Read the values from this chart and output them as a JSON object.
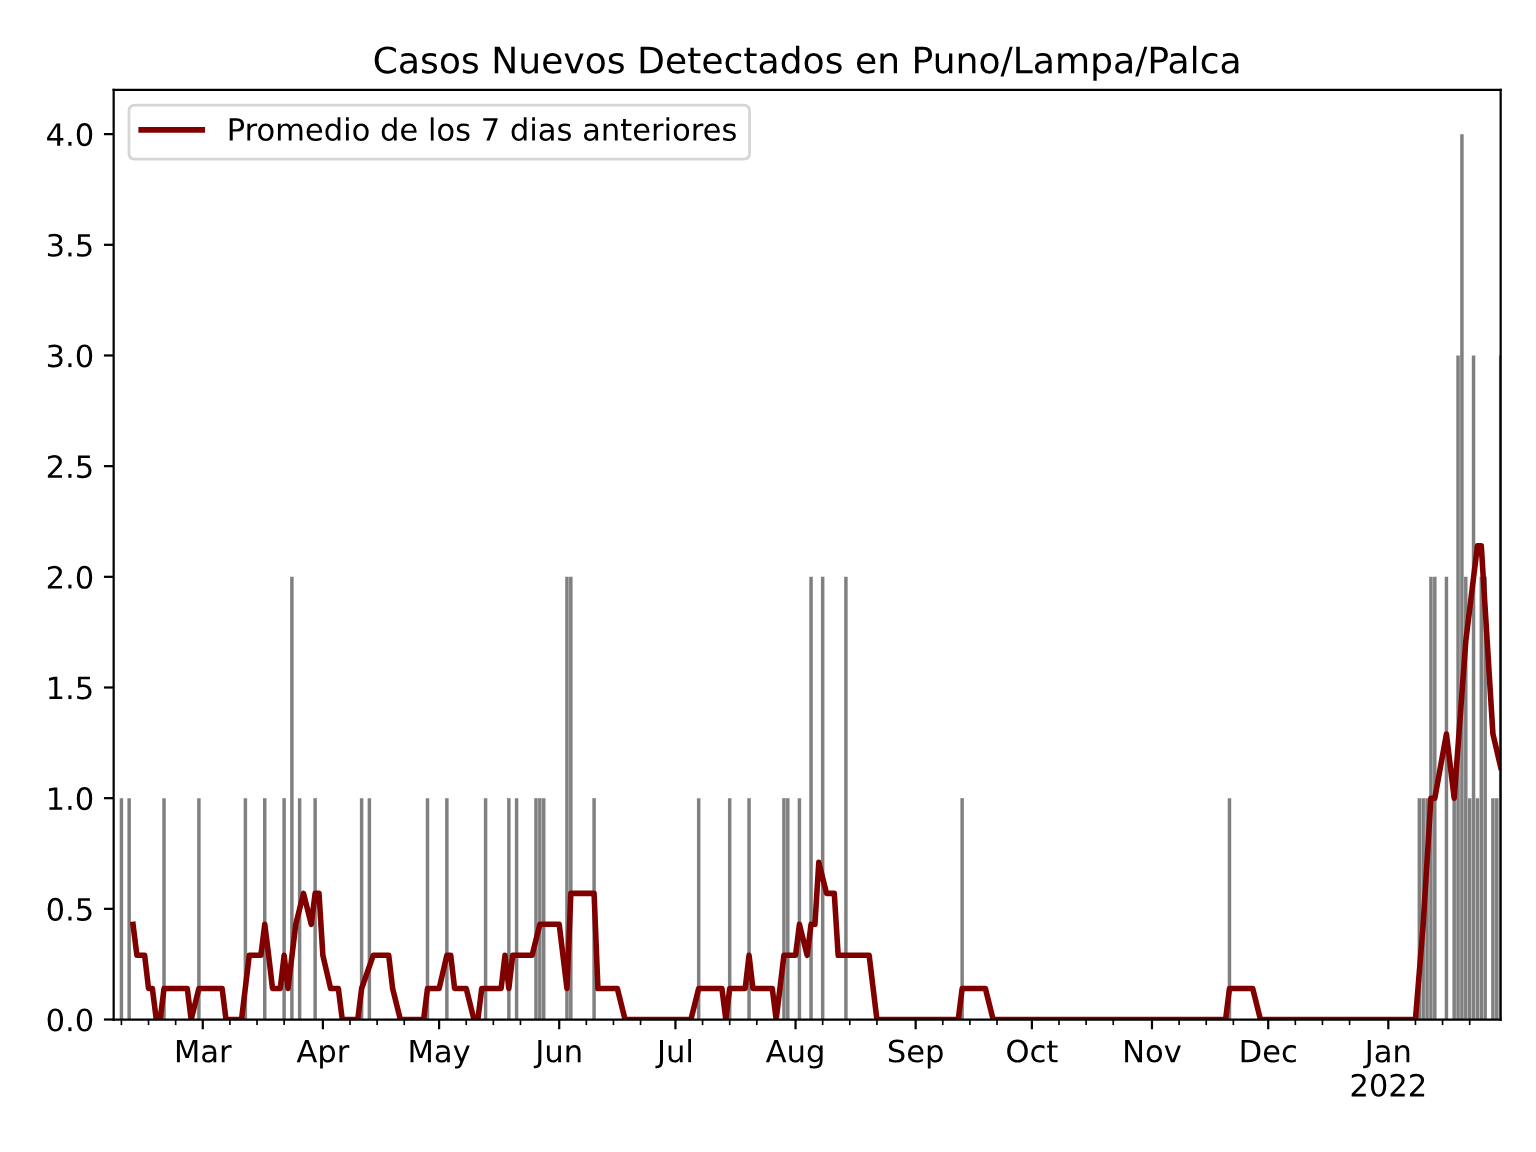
{
  "chart_data": {
    "type": "bar",
    "title": "Casos Nuevos Detectados en Puno/Lampa/Palca",
    "series": [
      {
        "color": "#808080",
        "x": [
          "2021-02-08",
          "2021-02-10",
          "2021-02-19",
          "2021-02-28",
          "2021-03-12",
          "2021-03-17",
          "2021-03-22",
          "2021-03-24",
          "2021-03-26",
          "2021-03-30",
          "2021-04-11",
          "2021-04-13",
          "2021-04-28",
          "2021-05-03",
          "2021-05-13",
          "2021-05-19",
          "2021-05-21",
          "2021-05-26",
          "2021-05-27",
          "2021-05-28",
          "2021-06-03",
          "2021-06-04",
          "2021-06-10",
          "2021-07-07",
          "2021-07-15",
          "2021-07-20",
          "2021-07-29",
          "2021-07-30",
          "2021-08-02",
          "2021-08-05",
          "2021-08-08",
          "2021-08-14",
          "2021-09-13",
          "2021-11-21",
          "2022-01-09",
          "2022-01-10",
          "2022-01-11",
          "2022-01-12",
          "2022-01-13",
          "2022-01-16",
          "2022-01-18",
          "2022-01-19",
          "2022-01-20",
          "2022-01-21",
          "2022-01-22",
          "2022-01-23",
          "2022-01-24",
          "2022-01-25",
          "2022-01-26",
          "2022-01-28",
          "2022-01-29",
          "2022-01-30"
        ],
        "values": [
          1,
          1,
          1,
          1,
          1,
          1,
          1,
          2,
          1,
          1,
          1,
          1,
          1,
          1,
          1,
          1,
          1,
          1,
          1,
          1,
          2,
          2,
          1,
          1,
          1,
          1,
          1,
          1,
          1,
          2,
          2,
          2,
          1,
          1,
          1,
          1,
          1,
          2,
          2,
          2,
          1,
          3,
          4,
          2,
          1,
          3,
          1,
          2,
          2,
          1,
          1,
          3
        ]
      },
      {
        "type": "line",
        "name": "Promedio de los 7 dias anteriores",
        "color": "#800000",
        "x": [
          "2021-02-11",
          "2021-02-12",
          "2021-02-14",
          "2021-02-15",
          "2021-02-16",
          "2021-02-17",
          "2021-02-18",
          "2021-02-19",
          "2021-02-25",
          "2021-02-26",
          "2021-02-28",
          "2021-03-06",
          "2021-03-07",
          "2021-03-11",
          "2021-03-13",
          "2021-03-16",
          "2021-03-17",
          "2021-03-18",
          "2021-03-19",
          "2021-03-21",
          "2021-03-22",
          "2021-03-23",
          "2021-03-25",
          "2021-03-27",
          "2021-03-29",
          "2021-03-30",
          "2021-03-31",
          "2021-04-01",
          "2021-04-03",
          "2021-04-05",
          "2021-04-06",
          "2021-04-10",
          "2021-04-11",
          "2021-04-14",
          "2021-04-18",
          "2021-04-19",
          "2021-04-21",
          "2021-04-27",
          "2021-04-28",
          "2021-05-01",
          "2021-05-03",
          "2021-05-04",
          "2021-05-05",
          "2021-05-08",
          "2021-05-10",
          "2021-05-11",
          "2021-05-12",
          "2021-05-17",
          "2021-05-18",
          "2021-05-19",
          "2021-05-20",
          "2021-05-25",
          "2021-05-27",
          "2021-06-01",
          "2021-06-03",
          "2021-06-04",
          "2021-06-10",
          "2021-06-11",
          "2021-06-16",
          "2021-06-18",
          "2021-07-05",
          "2021-07-07",
          "2021-07-13",
          "2021-07-14",
          "2021-07-15",
          "2021-07-19",
          "2021-07-20",
          "2021-07-21",
          "2021-07-26",
          "2021-07-27",
          "2021-07-29",
          "2021-08-01",
          "2021-08-02",
          "2021-08-04",
          "2021-08-05",
          "2021-08-06",
          "2021-08-07",
          "2021-08-09",
          "2021-08-11",
          "2021-08-12",
          "2021-08-20",
          "2021-08-22",
          "2021-09-12",
          "2021-09-13",
          "2021-09-19",
          "2021-09-21",
          "2021-11-20",
          "2021-11-21",
          "2021-11-27",
          "2021-11-29",
          "2022-01-08",
          "2022-01-10",
          "2022-01-12",
          "2022-01-13",
          "2022-01-16",
          "2022-01-18",
          "2022-01-21",
          "2022-01-24",
          "2022-01-25",
          "2022-01-28",
          "2022-01-30"
        ],
        "values": [
          0.43,
          0.29,
          0.29,
          0.14,
          0.14,
          0,
          0,
          0.14,
          0.14,
          0,
          0.14,
          0.14,
          0,
          0,
          0.29,
          0.29,
          0.43,
          0.29,
          0.14,
          0.14,
          0.29,
          0.14,
          0.43,
          0.57,
          0.43,
          0.57,
          0.57,
          0.29,
          0.14,
          0.14,
          0,
          0,
          0.14,
          0.29,
          0.29,
          0.14,
          0,
          0,
          0.14,
          0.14,
          0.29,
          0.29,
          0.14,
          0.14,
          0,
          0,
          0.14,
          0.14,
          0.29,
          0.14,
          0.29,
          0.29,
          0.43,
          0.43,
          0.14,
          0.57,
          0.57,
          0.14,
          0.14,
          0,
          0,
          0.14,
          0.14,
          0,
          0.14,
          0.14,
          0.29,
          0.14,
          0.14,
          0,
          0.29,
          0.29,
          0.43,
          0.29,
          0.43,
          0.43,
          0.71,
          0.57,
          0.57,
          0.29,
          0.29,
          0,
          0,
          0.14,
          0.14,
          0,
          0,
          0.14,
          0.14,
          0,
          0,
          0.43,
          1.0,
          1.0,
          1.29,
          1.0,
          1.71,
          2.14,
          2.14,
          1.29,
          1.14
        ]
      }
    ],
    "xlim": [
      "2021-02-06",
      "2022-01-30"
    ],
    "xticks": [
      {
        "value": "2021-02-08",
        "label": null
      },
      {
        "value": "2021-02-15",
        "label": null
      },
      {
        "value": "2021-02-22",
        "label": null
      },
      {
        "value": "2021-03-01",
        "label": "Mar"
      },
      {
        "value": "2021-03-08",
        "label": null
      },
      {
        "value": "2021-03-15",
        "label": null
      },
      {
        "value": "2021-03-22",
        "label": null
      },
      {
        "value": "2021-04-01",
        "label": "Apr"
      },
      {
        "value": "2021-04-08",
        "label": null
      },
      {
        "value": "2021-04-15",
        "label": null
      },
      {
        "value": "2021-04-22",
        "label": null
      },
      {
        "value": "2021-05-01",
        "label": "May"
      },
      {
        "value": "2021-05-08",
        "label": null
      },
      {
        "value": "2021-05-15",
        "label": null
      },
      {
        "value": "2021-05-22",
        "label": null
      },
      {
        "value": "2021-06-01",
        "label": "Jun"
      },
      {
        "value": "2021-06-08",
        "label": null
      },
      {
        "value": "2021-06-15",
        "label": null
      },
      {
        "value": "2021-06-22",
        "label": null
      },
      {
        "value": "2021-07-01",
        "label": "Jul"
      },
      {
        "value": "2021-07-08",
        "label": null
      },
      {
        "value": "2021-07-15",
        "label": null
      },
      {
        "value": "2021-07-22",
        "label": null
      },
      {
        "value": "2021-08-01",
        "label": "Aug"
      },
      {
        "value": "2021-08-08",
        "label": null
      },
      {
        "value": "2021-08-15",
        "label": null
      },
      {
        "value": "2021-08-22",
        "label": null
      },
      {
        "value": "2021-09-01",
        "label": "Sep"
      },
      {
        "value": "2021-09-08",
        "label": null
      },
      {
        "value": "2021-09-15",
        "label": null
      },
      {
        "value": "2021-09-22",
        "label": null
      },
      {
        "value": "2021-10-01",
        "label": "Oct"
      },
      {
        "value": "2021-10-08",
        "label": null
      },
      {
        "value": "2021-10-15",
        "label": null
      },
      {
        "value": "2021-10-22",
        "label": null
      },
      {
        "value": "2021-11-01",
        "label": "Nov"
      },
      {
        "value": "2021-11-08",
        "label": null
      },
      {
        "value": "2021-11-15",
        "label": null
      },
      {
        "value": "2021-11-22",
        "label": null
      },
      {
        "value": "2021-12-01",
        "label": "Dec"
      },
      {
        "value": "2021-12-08",
        "label": null
      },
      {
        "value": "2021-12-15",
        "label": null
      },
      {
        "value": "2021-12-22",
        "label": null
      },
      {
        "value": "2022-01-01",
        "label": "Jan\n2022"
      },
      {
        "value": "2022-01-08",
        "label": null
      },
      {
        "value": "2022-01-15",
        "label": null
      },
      {
        "value": "2022-01-22",
        "label": null
      }
    ],
    "ylim": [
      0,
      4.2
    ],
    "yticks": [
      {
        "value": 0,
        "label": "0.0"
      },
      {
        "value": 0.5,
        "label": "0.5"
      },
      {
        "value": 1,
        "label": "1.0"
      },
      {
        "value": 1.5,
        "label": "1.5"
      },
      {
        "value": 2,
        "label": "2.0"
      },
      {
        "value": 2.5,
        "label": "2.5"
      },
      {
        "value": 3,
        "label": "3.0"
      },
      {
        "value": 3.5,
        "label": "3.5"
      },
      {
        "value": 4,
        "label": "4.0"
      }
    ],
    "legend": "top left",
    "grid": false
  }
}
